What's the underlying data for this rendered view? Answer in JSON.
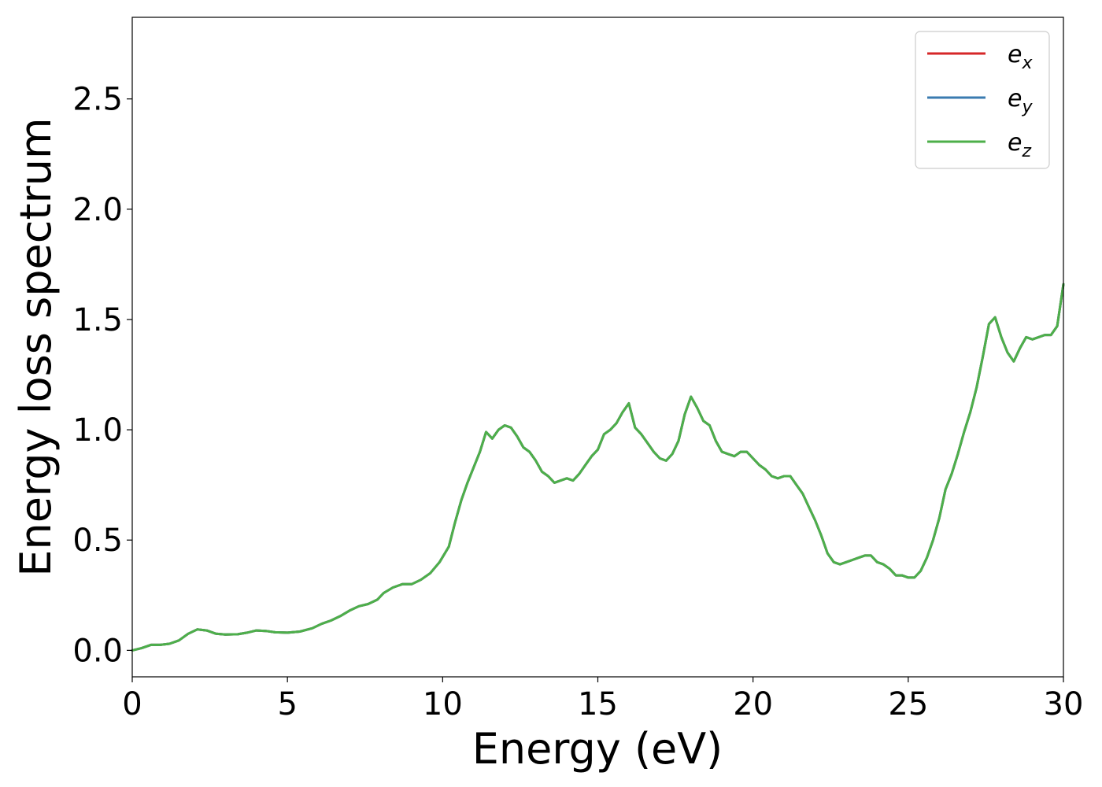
{
  "chart_data": {
    "type": "line",
    "title": "",
    "xlabel": "Energy (eV)",
    "ylabel": "Energy loss spectrum",
    "xlim": [
      0,
      30
    ],
    "ylim": [
      -0.12,
      2.87
    ],
    "xticks": [
      0,
      5,
      10,
      15,
      20,
      25,
      30
    ],
    "xtick_labels": [
      "0",
      "5",
      "10",
      "15",
      "20",
      "25",
      "30"
    ],
    "yticks": [
      0.0,
      0.5,
      1.0,
      1.5,
      2.0,
      2.5
    ],
    "ytick_labels": [
      "0.0",
      "0.5",
      "1.0",
      "1.5",
      "2.0",
      "2.5"
    ],
    "grid": false,
    "legend_position": "top-right",
    "x": [
      0,
      0.3,
      0.6,
      0.9,
      1.2,
      1.5,
      1.8,
      2.1,
      2.4,
      2.7,
      3.0,
      3.4,
      3.7,
      4.0,
      4.3,
      4.6,
      5.0,
      5.4,
      5.8,
      6.1,
      6.4,
      6.7,
      7.0,
      7.3,
      7.6,
      7.9,
      8.1,
      8.4,
      8.7,
      9.0,
      9.3,
      9.6,
      9.9,
      10.2,
      10.4,
      10.6,
      10.8,
      11.0,
      11.2,
      11.4,
      11.6,
      11.8,
      12.0,
      12.2,
      12.4,
      12.6,
      12.8,
      13.0,
      13.2,
      13.4,
      13.6,
      13.8,
      14.0,
      14.2,
      14.4,
      14.6,
      14.8,
      15.0,
      15.2,
      15.4,
      15.6,
      15.8,
      16.0,
      16.2,
      16.4,
      16.6,
      16.8,
      17.0,
      17.2,
      17.4,
      17.6,
      17.8,
      18.0,
      18.2,
      18.4,
      18.6,
      18.8,
      19.0,
      19.2,
      19.4,
      19.6,
      19.8,
      20.0,
      20.2,
      20.4,
      20.6,
      20.8,
      21.0,
      21.2,
      21.4,
      21.6,
      21.8,
      22.0,
      22.2,
      22.4,
      22.6,
      22.8,
      23.0,
      23.2,
      23.4,
      23.6,
      23.8,
      24.0,
      24.2,
      24.4,
      24.6,
      24.8,
      25.0,
      25.2,
      25.4,
      25.6,
      25.8,
      26.0,
      26.2,
      26.4,
      26.6,
      26.8,
      27.0,
      27.2,
      27.4,
      27.6,
      27.8,
      28.0,
      28.2,
      28.4,
      28.6,
      28.8,
      29.0,
      29.2,
      29.4,
      29.6,
      29.8,
      30.0
    ],
    "series": [
      {
        "name": "e_x",
        "label_base": "e",
        "label_sub": "x",
        "color": "#d62728",
        "values": [
          0.0,
          0.01,
          0.025,
          0.025,
          0.03,
          0.045,
          0.075,
          0.095,
          0.09,
          0.075,
          0.072,
          0.073,
          0.08,
          0.09,
          0.088,
          0.082,
          0.08,
          0.085,
          0.1,
          0.12,
          0.135,
          0.155,
          0.18,
          0.2,
          0.21,
          0.23,
          0.26,
          0.285,
          0.3,
          0.3,
          0.32,
          0.35,
          0.4,
          0.47,
          0.58,
          0.68,
          0.76,
          0.83,
          0.9,
          0.99,
          0.96,
          1.0,
          1.02,
          1.01,
          0.97,
          0.92,
          0.9,
          0.86,
          0.81,
          0.79,
          0.76,
          0.77,
          0.78,
          0.77,
          0.8,
          0.84,
          0.88,
          0.91,
          0.98,
          1.0,
          1.03,
          1.08,
          1.12,
          1.01,
          0.98,
          0.94,
          0.9,
          0.87,
          0.86,
          0.89,
          0.95,
          1.07,
          1.15,
          1.1,
          1.04,
          1.02,
          0.95,
          0.9,
          0.89,
          0.88,
          0.9,
          0.9,
          0.87,
          0.84,
          0.82,
          0.79,
          0.78,
          0.79,
          0.79,
          0.75,
          0.71,
          0.65,
          0.59,
          0.52,
          0.44,
          0.4,
          0.39,
          0.4,
          0.41,
          0.42,
          0.43,
          0.43,
          0.4,
          0.39,
          0.37,
          0.34,
          0.34,
          0.33,
          0.33,
          0.36,
          0.42,
          0.5,
          0.6,
          0.73,
          0.8,
          0.89,
          0.99,
          1.08,
          1.19,
          1.33,
          1.48,
          1.51,
          1.42,
          1.35,
          1.31,
          1.37,
          1.42,
          1.41,
          1.42,
          1.43,
          1.43,
          1.47,
          1.66
        ]
      },
      {
        "name": "e_y",
        "label_base": "e",
        "label_sub": "y",
        "color": "#3a7bb0",
        "values": [
          0.0,
          0.01,
          0.025,
          0.025,
          0.03,
          0.045,
          0.075,
          0.095,
          0.09,
          0.075,
          0.072,
          0.073,
          0.08,
          0.09,
          0.088,
          0.082,
          0.08,
          0.085,
          0.1,
          0.12,
          0.135,
          0.155,
          0.18,
          0.2,
          0.21,
          0.23,
          0.26,
          0.285,
          0.3,
          0.3,
          0.32,
          0.35,
          0.4,
          0.47,
          0.58,
          0.68,
          0.76,
          0.83,
          0.9,
          0.99,
          0.96,
          1.0,
          1.02,
          1.01,
          0.97,
          0.92,
          0.9,
          0.86,
          0.81,
          0.79,
          0.76,
          0.77,
          0.78,
          0.77,
          0.8,
          0.84,
          0.88,
          0.91,
          0.98,
          1.0,
          1.03,
          1.08,
          1.12,
          1.01,
          0.98,
          0.94,
          0.9,
          0.87,
          0.86,
          0.89,
          0.95,
          1.07,
          1.15,
          1.1,
          1.04,
          1.02,
          0.95,
          0.9,
          0.89,
          0.88,
          0.9,
          0.9,
          0.87,
          0.84,
          0.82,
          0.79,
          0.78,
          0.79,
          0.79,
          0.75,
          0.71,
          0.65,
          0.59,
          0.52,
          0.44,
          0.4,
          0.39,
          0.4,
          0.41,
          0.42,
          0.43,
          0.43,
          0.4,
          0.39,
          0.37,
          0.34,
          0.34,
          0.33,
          0.33,
          0.36,
          0.42,
          0.5,
          0.6,
          0.73,
          0.8,
          0.89,
          0.99,
          1.08,
          1.19,
          1.33,
          1.48,
          1.51,
          1.42,
          1.35,
          1.31,
          1.37,
          1.42,
          1.41,
          1.42,
          1.43,
          1.43,
          1.47,
          1.66
        ]
      },
      {
        "name": "e_z",
        "label_base": "e",
        "label_sub": "z",
        "color": "#4daf4a",
        "values": [
          0.0,
          0.01,
          0.025,
          0.025,
          0.03,
          0.045,
          0.075,
          0.095,
          0.09,
          0.075,
          0.072,
          0.073,
          0.08,
          0.09,
          0.088,
          0.082,
          0.08,
          0.085,
          0.1,
          0.12,
          0.135,
          0.155,
          0.18,
          0.2,
          0.21,
          0.23,
          0.26,
          0.285,
          0.3,
          0.3,
          0.32,
          0.35,
          0.4,
          0.47,
          0.58,
          0.68,
          0.76,
          0.83,
          0.9,
          0.99,
          0.96,
          1.0,
          1.02,
          1.01,
          0.97,
          0.92,
          0.9,
          0.86,
          0.81,
          0.79,
          0.76,
          0.77,
          0.78,
          0.77,
          0.8,
          0.84,
          0.88,
          0.91,
          0.98,
          1.0,
          1.03,
          1.08,
          1.12,
          1.01,
          0.98,
          0.94,
          0.9,
          0.87,
          0.86,
          0.89,
          0.95,
          1.07,
          1.15,
          1.1,
          1.04,
          1.02,
          0.95,
          0.9,
          0.89,
          0.88,
          0.9,
          0.9,
          0.87,
          0.84,
          0.82,
          0.79,
          0.78,
          0.79,
          0.79,
          0.75,
          0.71,
          0.65,
          0.59,
          0.52,
          0.44,
          0.4,
          0.39,
          0.4,
          0.41,
          0.42,
          0.43,
          0.43,
          0.4,
          0.39,
          0.37,
          0.34,
          0.34,
          0.33,
          0.33,
          0.36,
          0.42,
          0.5,
          0.6,
          0.73,
          0.8,
          0.89,
          0.99,
          1.08,
          1.19,
          1.33,
          1.48,
          1.51,
          1.42,
          1.35,
          1.31,
          1.37,
          1.42,
          1.41,
          1.42,
          1.43,
          1.43,
          1.47,
          1.66
        ]
      }
    ]
  }
}
